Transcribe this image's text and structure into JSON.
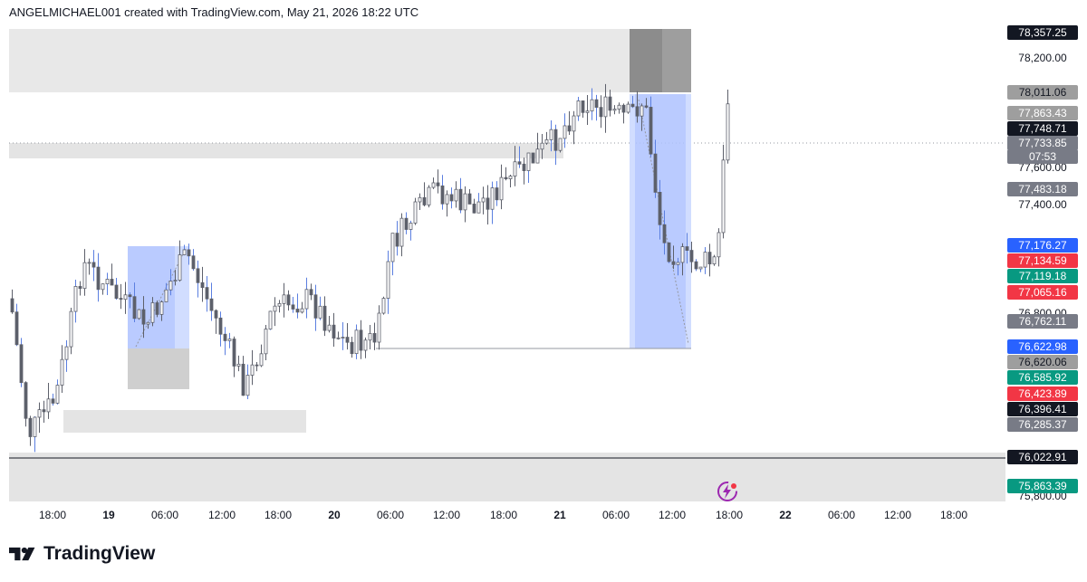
{
  "header": {
    "caption": "ANGELMICHAEL001 created with TradingView.com, May 21, 2026 18:22 UTC"
  },
  "logo": {
    "text": "TradingView"
  },
  "colors": {
    "up": "#089981",
    "down": "#f23645",
    "blue": "#2962ff",
    "zone_gray": "#e4e4e4",
    "zone_dark": "#9e9e9e",
    "candle": "#5d606b",
    "wick_blue": "#5b7fe0"
  },
  "price_axis": {
    "ticks": [
      "78,200.00",
      "77,600.00",
      "77,400.00",
      "76,800.00",
      "75,800.00"
    ],
    "labels": [
      {
        "text": "78,357.25",
        "bg": "#131722",
        "fg": "#ffffff"
      },
      {
        "text": "78,011.06",
        "bg": "#9e9e9e",
        "fg": "#131722"
      },
      {
        "text": "77,863.43",
        "bg": "#9e9e9e",
        "fg": "#ffffff"
      },
      {
        "text": "77,748.71",
        "bg": "#131722",
        "fg": "#ffffff"
      },
      {
        "text": "77,733.85",
        "bg": "#787b86",
        "fg": "#ffffff"
      },
      {
        "text": "07:53",
        "bg": "#787b86",
        "fg": "#ffffff"
      },
      {
        "text": "77,483.18",
        "bg": "#787b86",
        "fg": "#ffffff"
      },
      {
        "text": "77,176.27",
        "bg": "#2962ff",
        "fg": "#ffffff"
      },
      {
        "text": "77,134.59",
        "bg": "#f23645",
        "fg": "#ffffff"
      },
      {
        "text": "77,119.18",
        "bg": "#089981",
        "fg": "#ffffff"
      },
      {
        "text": "77,065.16",
        "bg": "#f23645",
        "fg": "#ffffff"
      },
      {
        "text": "76,762.11",
        "bg": "#787b86",
        "fg": "#ffffff"
      },
      {
        "text": "76,622.98",
        "bg": "#2962ff",
        "fg": "#ffffff"
      },
      {
        "text": "76,620.06",
        "bg": "#9e9e9e",
        "fg": "#131722"
      },
      {
        "text": "76,585.92",
        "bg": "#089981",
        "fg": "#ffffff"
      },
      {
        "text": "76,423.89",
        "bg": "#f23645",
        "fg": "#ffffff"
      },
      {
        "text": "76,396.41",
        "bg": "#131722",
        "fg": "#ffffff"
      },
      {
        "text": "76,285.37",
        "bg": "#787b86",
        "fg": "#ffffff"
      },
      {
        "text": "76,022.91",
        "bg": "#131722",
        "fg": "#ffffff"
      },
      {
        "text": "75,863.39",
        "bg": "#089981",
        "fg": "#ffffff"
      }
    ]
  },
  "time_axis": {
    "labels": [
      {
        "text": "18:00",
        "day": false
      },
      {
        "text": "19",
        "day": true
      },
      {
        "text": "06:00",
        "day": false
      },
      {
        "text": "12:00",
        "day": false
      },
      {
        "text": "18:00",
        "day": false
      },
      {
        "text": "20",
        "day": true
      },
      {
        "text": "06:00",
        "day": false
      },
      {
        "text": "12:00",
        "day": false
      },
      {
        "text": "18:00",
        "day": false
      },
      {
        "text": "21",
        "day": true
      },
      {
        "text": "06:00",
        "day": false
      },
      {
        "text": "12:00",
        "day": false
      },
      {
        "text": "18:00",
        "day": false
      },
      {
        "text": "22",
        "day": true
      },
      {
        "text": "06:00",
        "day": false
      },
      {
        "text": "12:00",
        "day": false
      },
      {
        "text": "18:00",
        "day": false
      }
    ]
  },
  "icons": {
    "bolt": "lightning-bolt-icon",
    "logo": "tradingview-logo-icon"
  }
}
